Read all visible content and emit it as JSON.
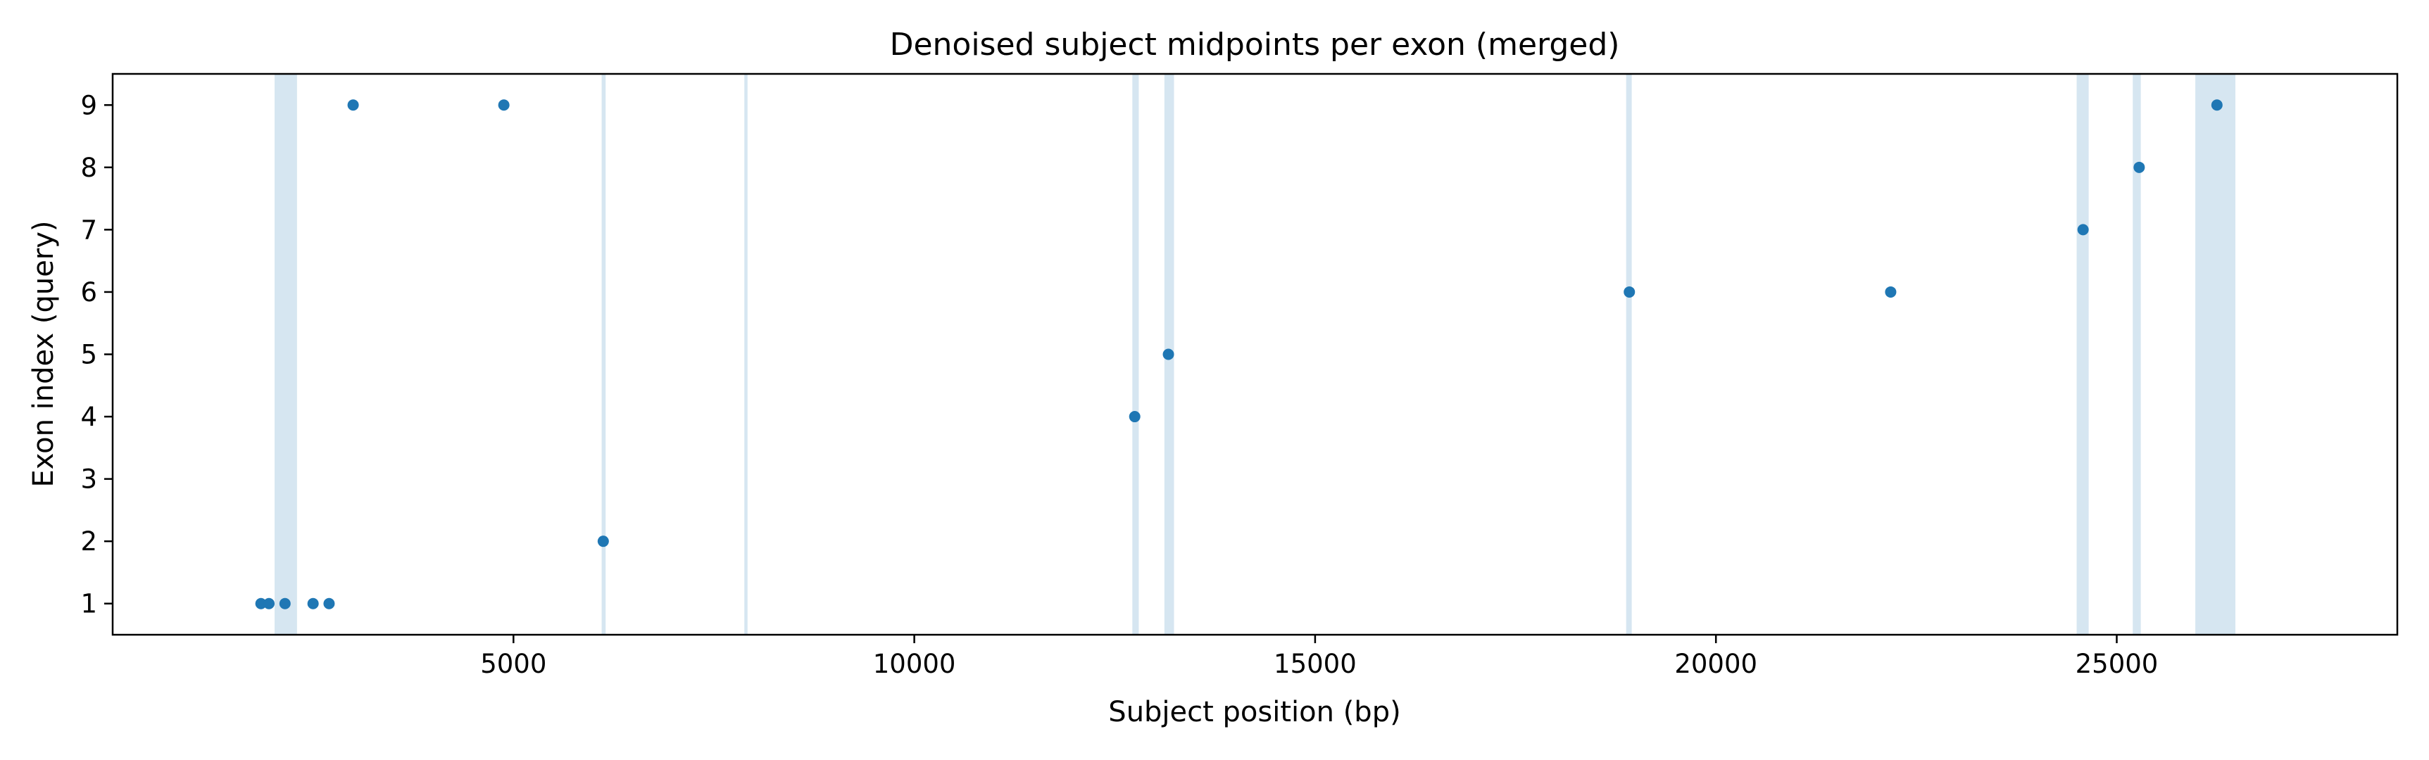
{
  "chart_data": {
    "type": "scatter",
    "title": "Denoised subject midpoints per exon (merged)",
    "xlabel": "Subject position (bp)",
    "ylabel": "Exon index (query)",
    "xlim": [
      0,
      28500
    ],
    "ylim": [
      0.5,
      9.5
    ],
    "xticks": [
      5000,
      10000,
      15000,
      20000,
      25000
    ],
    "yticks": [
      1,
      2,
      3,
      4,
      5,
      6,
      7,
      8,
      9
    ],
    "grid": false,
    "legend": "none",
    "colors": {
      "points": "#1f77b4",
      "bands": "#d6e6f1"
    },
    "highlight_bands": [
      [
        2020,
        2300
      ],
      [
        6100,
        6150
      ],
      [
        7880,
        7920
      ],
      [
        12720,
        12800
      ],
      [
        13120,
        13240
      ],
      [
        18880,
        18950
      ],
      [
        24500,
        24650
      ],
      [
        25200,
        25300
      ],
      [
        25980,
        26480
      ]
    ],
    "points": [
      {
        "x": 1850,
        "y": 1
      },
      {
        "x": 1950,
        "y": 1
      },
      {
        "x": 2150,
        "y": 1
      },
      {
        "x": 2500,
        "y": 1
      },
      {
        "x": 2700,
        "y": 1
      },
      {
        "x": 3000,
        "y": 9
      },
      {
        "x": 4880,
        "y": 9
      },
      {
        "x": 6120,
        "y": 2
      },
      {
        "x": 12750,
        "y": 4
      },
      {
        "x": 13170,
        "y": 5
      },
      {
        "x": 18920,
        "y": 6
      },
      {
        "x": 22180,
        "y": 6
      },
      {
        "x": 24580,
        "y": 7
      },
      {
        "x": 25280,
        "y": 8
      },
      {
        "x": 26250,
        "y": 9
      }
    ]
  }
}
